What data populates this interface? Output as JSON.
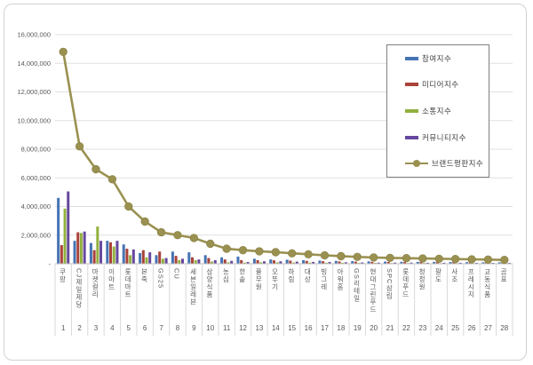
{
  "chart_data": {
    "type": "bar",
    "subtype": "grouped-bars-with-line-overlay",
    "title": "",
    "categories": [
      "쿠팡",
      "CJ제일제당",
      "마켓컬리",
      "이마트",
      "롯데마트",
      "본죽",
      "GS25",
      "CU",
      "세븐일레븐",
      "삼양식품",
      "농심",
      "한솥",
      "풀무원",
      "오뚜기",
      "하림",
      "대상",
      "빙그레",
      "아워홈",
      "GS리테일",
      "현대그린푸드",
      "SPC삼립",
      "롯데푸드",
      "청정원",
      "팔도",
      "사조",
      "프레시지",
      "교동식품",
      "곰표"
    ],
    "category_ranks": [
      "1",
      "2",
      "3",
      "4",
      "5",
      "6",
      "7",
      "8",
      "9",
      "10",
      "11",
      "12",
      "13",
      "14",
      "15",
      "16",
      "17",
      "18",
      "19",
      "20",
      "21",
      "22",
      "23",
      "24",
      "25",
      "26",
      "27",
      "28"
    ],
    "series": [
      {
        "name": "참여지수",
        "type": "bar",
        "color": "#4673b4",
        "values": [
          4600000,
          1600000,
          1450000,
          1600000,
          1350000,
          750000,
          600000,
          850000,
          800000,
          600000,
          450000,
          500000,
          350000,
          300000,
          280000,
          250000,
          220000,
          200000,
          180000,
          170000,
          150000,
          140000,
          130000,
          130000,
          120000,
          110000,
          100000,
          100000
        ]
      },
      {
        "name": "미디어지수",
        "type": "bar",
        "color": "#aa423a",
        "values": [
          1300000,
          2200000,
          950000,
          1500000,
          1050000,
          950000,
          850000,
          550000,
          450000,
          400000,
          300000,
          250000,
          250000,
          240000,
          220000,
          200000,
          180000,
          160000,
          150000,
          130000,
          130000,
          120000,
          120000,
          110000,
          100000,
          100000,
          90000,
          80000
        ]
      },
      {
        "name": "소통지수",
        "type": "bar",
        "color": "#92b13f",
        "values": [
          3850000,
          2150000,
          2600000,
          1200000,
          600000,
          450000,
          350000,
          250000,
          250000,
          150000,
          100000,
          80000,
          100000,
          100000,
          80000,
          80000,
          70000,
          70000,
          60000,
          60000,
          50000,
          50000,
          50000,
          40000,
          40000,
          40000,
          40000,
          30000
        ]
      },
      {
        "name": "커뮤니티지수",
        "type": "bar",
        "color": "#66489e",
        "values": [
          5050000,
          2250000,
          1600000,
          1600000,
          1000000,
          800000,
          400000,
          350000,
          300000,
          250000,
          200000,
          120000,
          170000,
          170000,
          150000,
          130000,
          120000,
          100000,
          90000,
          80000,
          80000,
          80000,
          70000,
          70000,
          70000,
          60000,
          60000,
          60000
        ]
      },
      {
        "name": "브랜드평판지수",
        "type": "line",
        "color": "#9a9150",
        "values": [
          14800000,
          8200000,
          6600000,
          5900000,
          4000000,
          2950000,
          2200000,
          2000000,
          1800000,
          1400000,
          1050000,
          950000,
          870000,
          810000,
          730000,
          660000,
          590000,
          530000,
          480000,
          440000,
          410000,
          390000,
          370000,
          350000,
          330000,
          310000,
          290000,
          270000
        ]
      }
    ],
    "y_axis": {
      "min": 0,
      "max": 16000000,
      "step": 2000000,
      "tick_labels": [
        "-",
        "2,000,000",
        "4,000,000",
        "6,000,000",
        "8,000,000",
        "10,000,000",
        "12,000,000",
        "14,000,000",
        "16,000,000"
      ]
    },
    "legend": {
      "position": "inside-top-right",
      "entries": [
        "참여지수",
        "미디어지수",
        "소통지수",
        "커뮤니티지수",
        "브랜드평판지수"
      ]
    },
    "grid": true
  },
  "colors": {
    "background": "#ffffff",
    "frame_border": "#d2d2d2",
    "gridline": "#e0e0e0",
    "axis_line": "#bfbfbf",
    "separator": "#d9d9d9",
    "tick_text": "#595959",
    "legend_border": "#7f7f7f",
    "legend_text": "#404040"
  }
}
